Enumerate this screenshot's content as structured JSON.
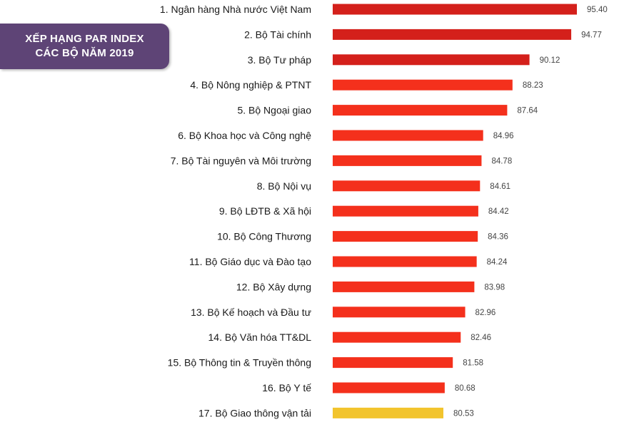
{
  "title": {
    "line1": "XẾP HẠNG PAR INDEX",
    "line2": "CÁC BỘ NĂM 2019"
  },
  "colors": {
    "badge": "#5e4476",
    "top3": "#d4201b",
    "bar": "#f4301c",
    "last": "#f2c42d"
  },
  "chart_data": {
    "type": "bar",
    "orientation": "horizontal",
    "title": "XẾP HẠNG PAR INDEX CÁC BỘ NĂM 2019",
    "categories": [
      "1. Ngân hàng Nhà nước Việt Nam",
      "2. Bộ Tài chính",
      "3. Bộ Tư pháp",
      "4. Bộ Nông nghiệp & PTNT",
      "5. Bộ Ngoại giao",
      "6. Bộ Khoa học và Công nghệ",
      "7. Bộ Tài nguyên và Môi trường",
      "8. Bộ Nội vụ",
      "9. Bộ LĐTB & Xã hội",
      "10. Bộ Công Thương",
      "11. Bộ Giáo dục và Đào tạo",
      "12. Bộ Xây dựng",
      "13. Bộ Kế hoạch và Đầu tư",
      "14. Bộ Văn hóa TT&DL",
      "15. Bộ Thông tin & Truyền thông",
      "16. Bộ Y tế",
      "17. Bộ Giao thông vận tải"
    ],
    "values": [
      95.4,
      94.77,
      90.12,
      88.23,
      87.64,
      84.96,
      84.78,
      84.61,
      84.42,
      84.36,
      84.24,
      83.98,
      82.96,
      82.46,
      81.58,
      80.68,
      80.53
    ],
    "value_labels": [
      "95.40",
      "94.77",
      "90.12",
      "88.23",
      "87.64",
      "84.96",
      "84.78",
      "84.61",
      "84.42",
      "84.36",
      "84.24",
      "83.98",
      "82.96",
      "82.46",
      "81.58",
      "80.68",
      "80.53"
    ],
    "bar_colors": [
      "#d4201b",
      "#d4201b",
      "#d4201b",
      "#f4301c",
      "#f4301c",
      "#f4301c",
      "#f4301c",
      "#f4301c",
      "#f4301c",
      "#f4301c",
      "#f4301c",
      "#f4301c",
      "#f4301c",
      "#f4301c",
      "#f4301c",
      "#f4301c",
      "#f2c42d"
    ],
    "grid": false
  }
}
